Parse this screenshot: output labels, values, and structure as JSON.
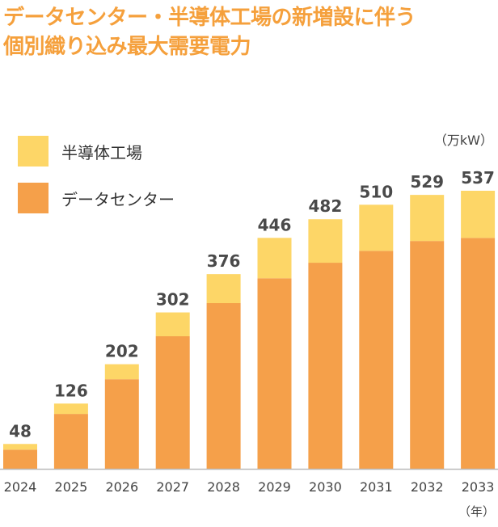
{
  "chart_data": {
    "type": "bar",
    "stacked": true,
    "title": [
      "データセンター・半導体工場の新増設に伴う",
      "個別織り込み最大需要電力"
    ],
    "unit": "（万kW）",
    "xunit": "（年）",
    "categories": [
      "2024",
      "2025",
      "2026",
      "2027",
      "2028",
      "2029",
      "2030",
      "2031",
      "2032",
      "2033"
    ],
    "series": [
      {
        "name": "データセンター",
        "color": "#f5a04a",
        "values": [
          37,
          106,
          173,
          256,
          320,
          368,
          398,
          421,
          440,
          446
        ]
      },
      {
        "name": "半導体工場",
        "color": "#fdd667",
        "values": [
          11,
          20,
          29,
          46,
          56,
          78,
          84,
          89,
          89,
          91
        ]
      }
    ],
    "totals": [
      48,
      126,
      202,
      302,
      376,
      446,
      482,
      510,
      529,
      537
    ],
    "ylim": [
      0,
      537
    ],
    "grid": false,
    "legend": "top-left"
  }
}
